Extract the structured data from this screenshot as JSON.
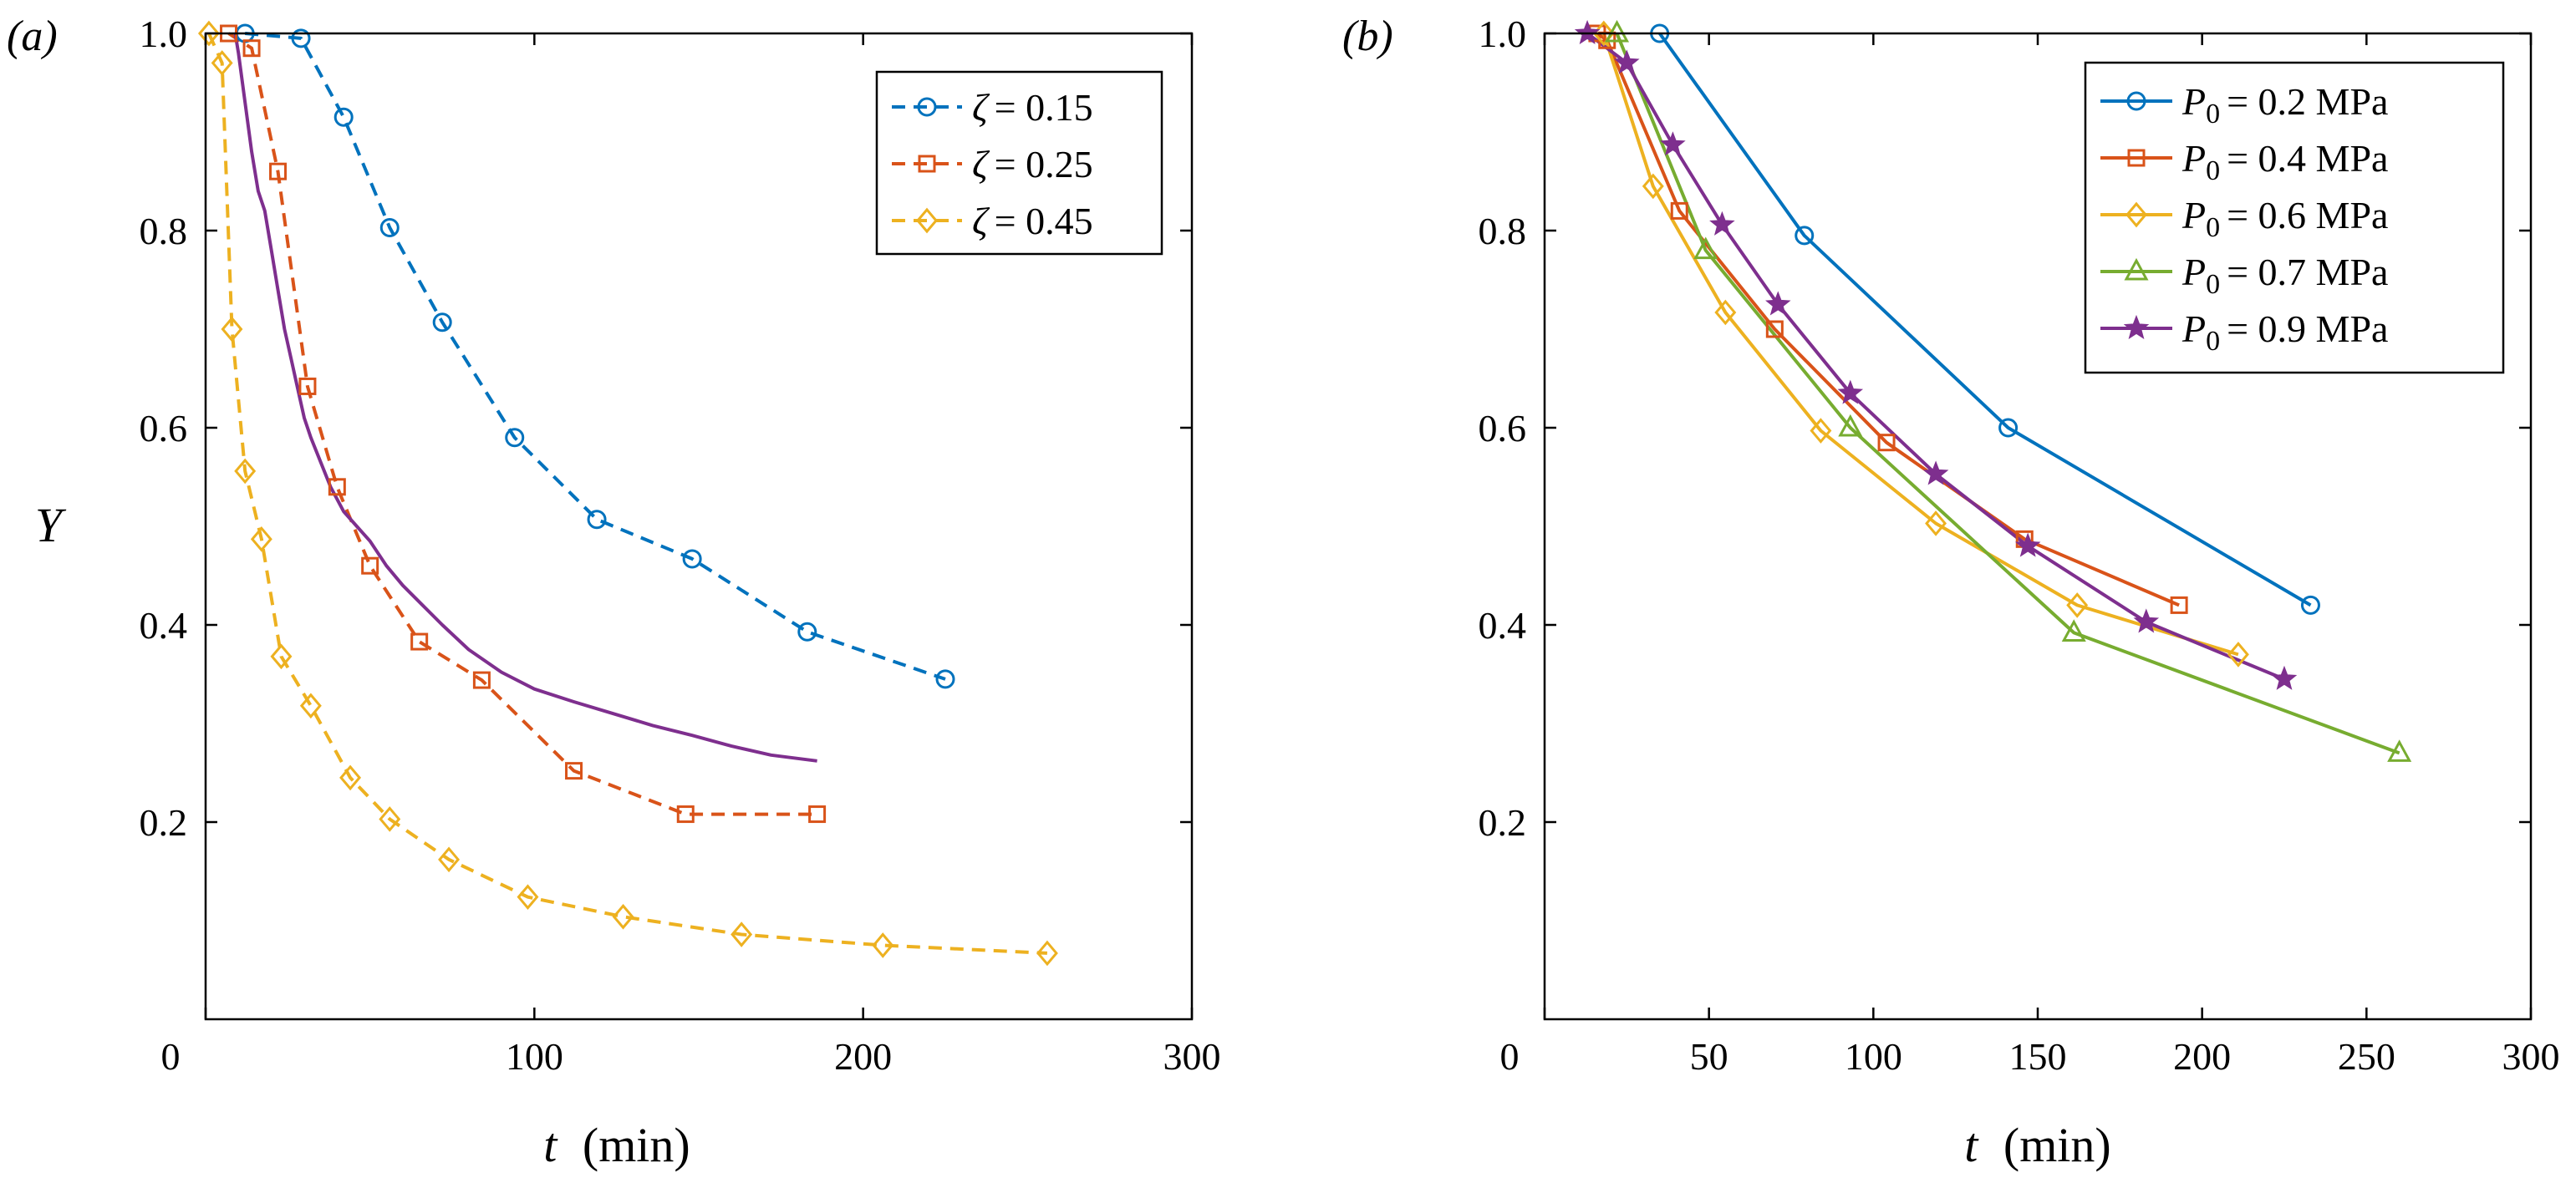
{
  "chart_data": [
    {
      "panel_label": "(a)",
      "type": "line",
      "xlabel_symbol": "t",
      "xlabel_unit": "(min)",
      "ylabel": "Υ",
      "xlim": [
        0,
        300
      ],
      "ylim": [
        0,
        1.0
      ],
      "xticks": [
        0,
        100,
        200,
        300
      ],
      "yticks": [
        0.2,
        0.4,
        0.6,
        0.8,
        1.0
      ],
      "xtick_labels": [
        "0",
        "100",
        "200",
        "300"
      ],
      "ytick_labels": [
        "0.2",
        "0.4",
        "0.6",
        "0.8",
        "1.0"
      ],
      "grid": false,
      "legend_position": "top-right",
      "series": [
        {
          "name": "ζ = 0.15",
          "legend_symbol": "ζ",
          "legend_value": "= 0.15",
          "color": "#0072BD",
          "marker": "circle",
          "dash": true,
          "x": [
            12,
            29,
            42,
            56,
            72,
            94,
            119,
            148,
            183,
            225
          ],
          "y": [
            1.0,
            0.995,
            0.915,
            0.803,
            0.707,
            0.59,
            0.507,
            0.467,
            0.393,
            0.345
          ]
        },
        {
          "name": "ζ = 0.25",
          "legend_symbol": "ζ",
          "legend_value": "= 0.25",
          "color": "#D95319",
          "marker": "square",
          "dash": true,
          "x": [
            7,
            14,
            22,
            31,
            40,
            50,
            65,
            84,
            112,
            146,
            186
          ],
          "y": [
            1.0,
            0.985,
            0.86,
            0.642,
            0.54,
            0.46,
            0.383,
            0.344,
            0.252,
            0.208,
            0.208
          ]
        },
        {
          "name": "ζ = 0.45",
          "legend_symbol": "ζ",
          "legend_value": "= 0.45",
          "color": "#EDB120",
          "marker": "diamond",
          "dash": true,
          "x": [
            1,
            5,
            8,
            12,
            17,
            23,
            32,
            44,
            56,
            74,
            98,
            127,
            163,
            206,
            256
          ],
          "y": [
            1.0,
            0.97,
            0.7,
            0.556,
            0.487,
            0.368,
            0.318,
            0.245,
            0.203,
            0.162,
            0.124,
            0.104,
            0.086,
            0.075,
            0.067
          ]
        },
        {
          "name": "",
          "color": "#7E2F8E",
          "marker": "none",
          "dash": false,
          "x": [
            9,
            10,
            12,
            14,
            16,
            18,
            20,
            22,
            24,
            26,
            28,
            30,
            32,
            35,
            38,
            42,
            46,
            50,
            55,
            60,
            66,
            72,
            80,
            90,
            100,
            112,
            124,
            136,
            148,
            160,
            172,
            186
          ],
          "y": [
            1.0,
            0.98,
            0.93,
            0.88,
            0.84,
            0.82,
            0.78,
            0.74,
            0.7,
            0.67,
            0.64,
            0.61,
            0.59,
            0.565,
            0.54,
            0.515,
            0.5,
            0.485,
            0.46,
            0.44,
            0.42,
            0.4,
            0.375,
            0.352,
            0.335,
            0.322,
            0.31,
            0.298,
            0.288,
            0.277,
            0.268,
            0.262
          ]
        }
      ]
    },
    {
      "panel_label": "(b)",
      "type": "line",
      "xlabel_symbol": "t",
      "xlabel_unit": "(min)",
      "ylabel": "",
      "xlim": [
        0,
        300
      ],
      "ylim": [
        0,
        1.0
      ],
      "xticks": [
        0,
        50,
        100,
        150,
        200,
        250,
        300
      ],
      "yticks": [
        0.2,
        0.4,
        0.6,
        0.8,
        1.0
      ],
      "xtick_labels": [
        "0",
        "50",
        "100",
        "150",
        "200",
        "250",
        "300"
      ],
      "ytick_labels": [
        "0.2",
        "0.4",
        "0.6",
        "0.8",
        "1.0"
      ],
      "grid": false,
      "legend_position": "top-right",
      "series": [
        {
          "name": "P0 = 0.2 MPa",
          "legend_symbol": "P",
          "legend_subscript": "0",
          "legend_value": "= 0.2 MPa",
          "color": "#0072BD",
          "marker": "circle",
          "x": [
            35,
            79,
            141,
            233
          ],
          "y": [
            1.0,
            0.795,
            0.6,
            0.42
          ]
        },
        {
          "name": "P0 = 0.4 MPa",
          "legend_symbol": "P",
          "legend_subscript": "0",
          "legend_value": "= 0.4 MPa",
          "color": "#D95319",
          "marker": "square",
          "x": [
            16,
            19,
            41,
            70,
            104,
            146,
            193
          ],
          "y": [
            1.0,
            0.993,
            0.82,
            0.7,
            0.585,
            0.487,
            0.42
          ]
        },
        {
          "name": "P0 = 0.6 MPa",
          "legend_symbol": "P",
          "legend_subscript": "0",
          "legend_value": "= 0.6 MPa",
          "color": "#EDB120",
          "marker": "diamond",
          "x": [
            18,
            33,
            55,
            84,
            119,
            162,
            211
          ],
          "y": [
            1.0,
            0.845,
            0.717,
            0.597,
            0.503,
            0.42,
            0.37
          ]
        },
        {
          "name": "P0 = 0.7 MPa",
          "legend_symbol": "P",
          "legend_subscript": "0",
          "legend_value": "= 0.7 MPa",
          "color": "#77AC30",
          "marker": "triangle",
          "x": [
            22,
            49,
            93,
            161,
            260
          ],
          "y": [
            1.0,
            0.78,
            0.6,
            0.392,
            0.27
          ]
        },
        {
          "name": "P0 = 0.9 MPa",
          "legend_symbol": "P",
          "legend_subscript": "0",
          "legend_value": "= 0.9 MPa",
          "color": "#7E2F8E",
          "marker": "star",
          "x": [
            13,
            25,
            39,
            54,
            71,
            93,
            119,
            147,
            183,
            225
          ],
          "y": [
            1.0,
            0.97,
            0.887,
            0.806,
            0.725,
            0.635,
            0.553,
            0.48,
            0.403,
            0.345
          ]
        }
      ]
    }
  ]
}
